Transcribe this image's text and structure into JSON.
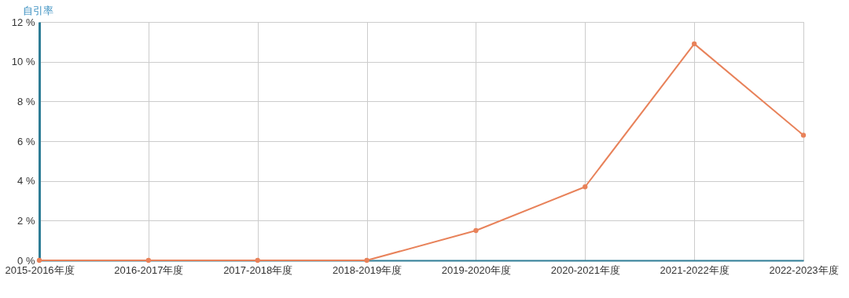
{
  "chart_data": {
    "type": "line",
    "ylabel": "自引率",
    "categories": [
      "2015-2016年度",
      "2016-2017年度",
      "2017-2018年度",
      "2018-2019年度",
      "2019-2020年度",
      "2020-2021年度",
      "2021-2022年度",
      "2022-2023年度"
    ],
    "series": [
      {
        "color": "#e8825a",
        "values": [
          0,
          0,
          0,
          0,
          1.5,
          3.7,
          10.9,
          6.3
        ]
      }
    ],
    "ylim": [
      0,
      12
    ],
    "yticks": [
      {
        "value": 0,
        "label": "0 %"
      },
      {
        "value": 2,
        "label": "2 %"
      },
      {
        "value": 4,
        "label": "4 %"
      },
      {
        "value": 6,
        "label": "6 %"
      },
      {
        "value": 8,
        "label": "8 %"
      },
      {
        "value": 10,
        "label": "10 %"
      },
      {
        "value": 12,
        "label": "12 %"
      }
    ],
    "grid": true,
    "marker": "circle",
    "line_style": "solid"
  }
}
